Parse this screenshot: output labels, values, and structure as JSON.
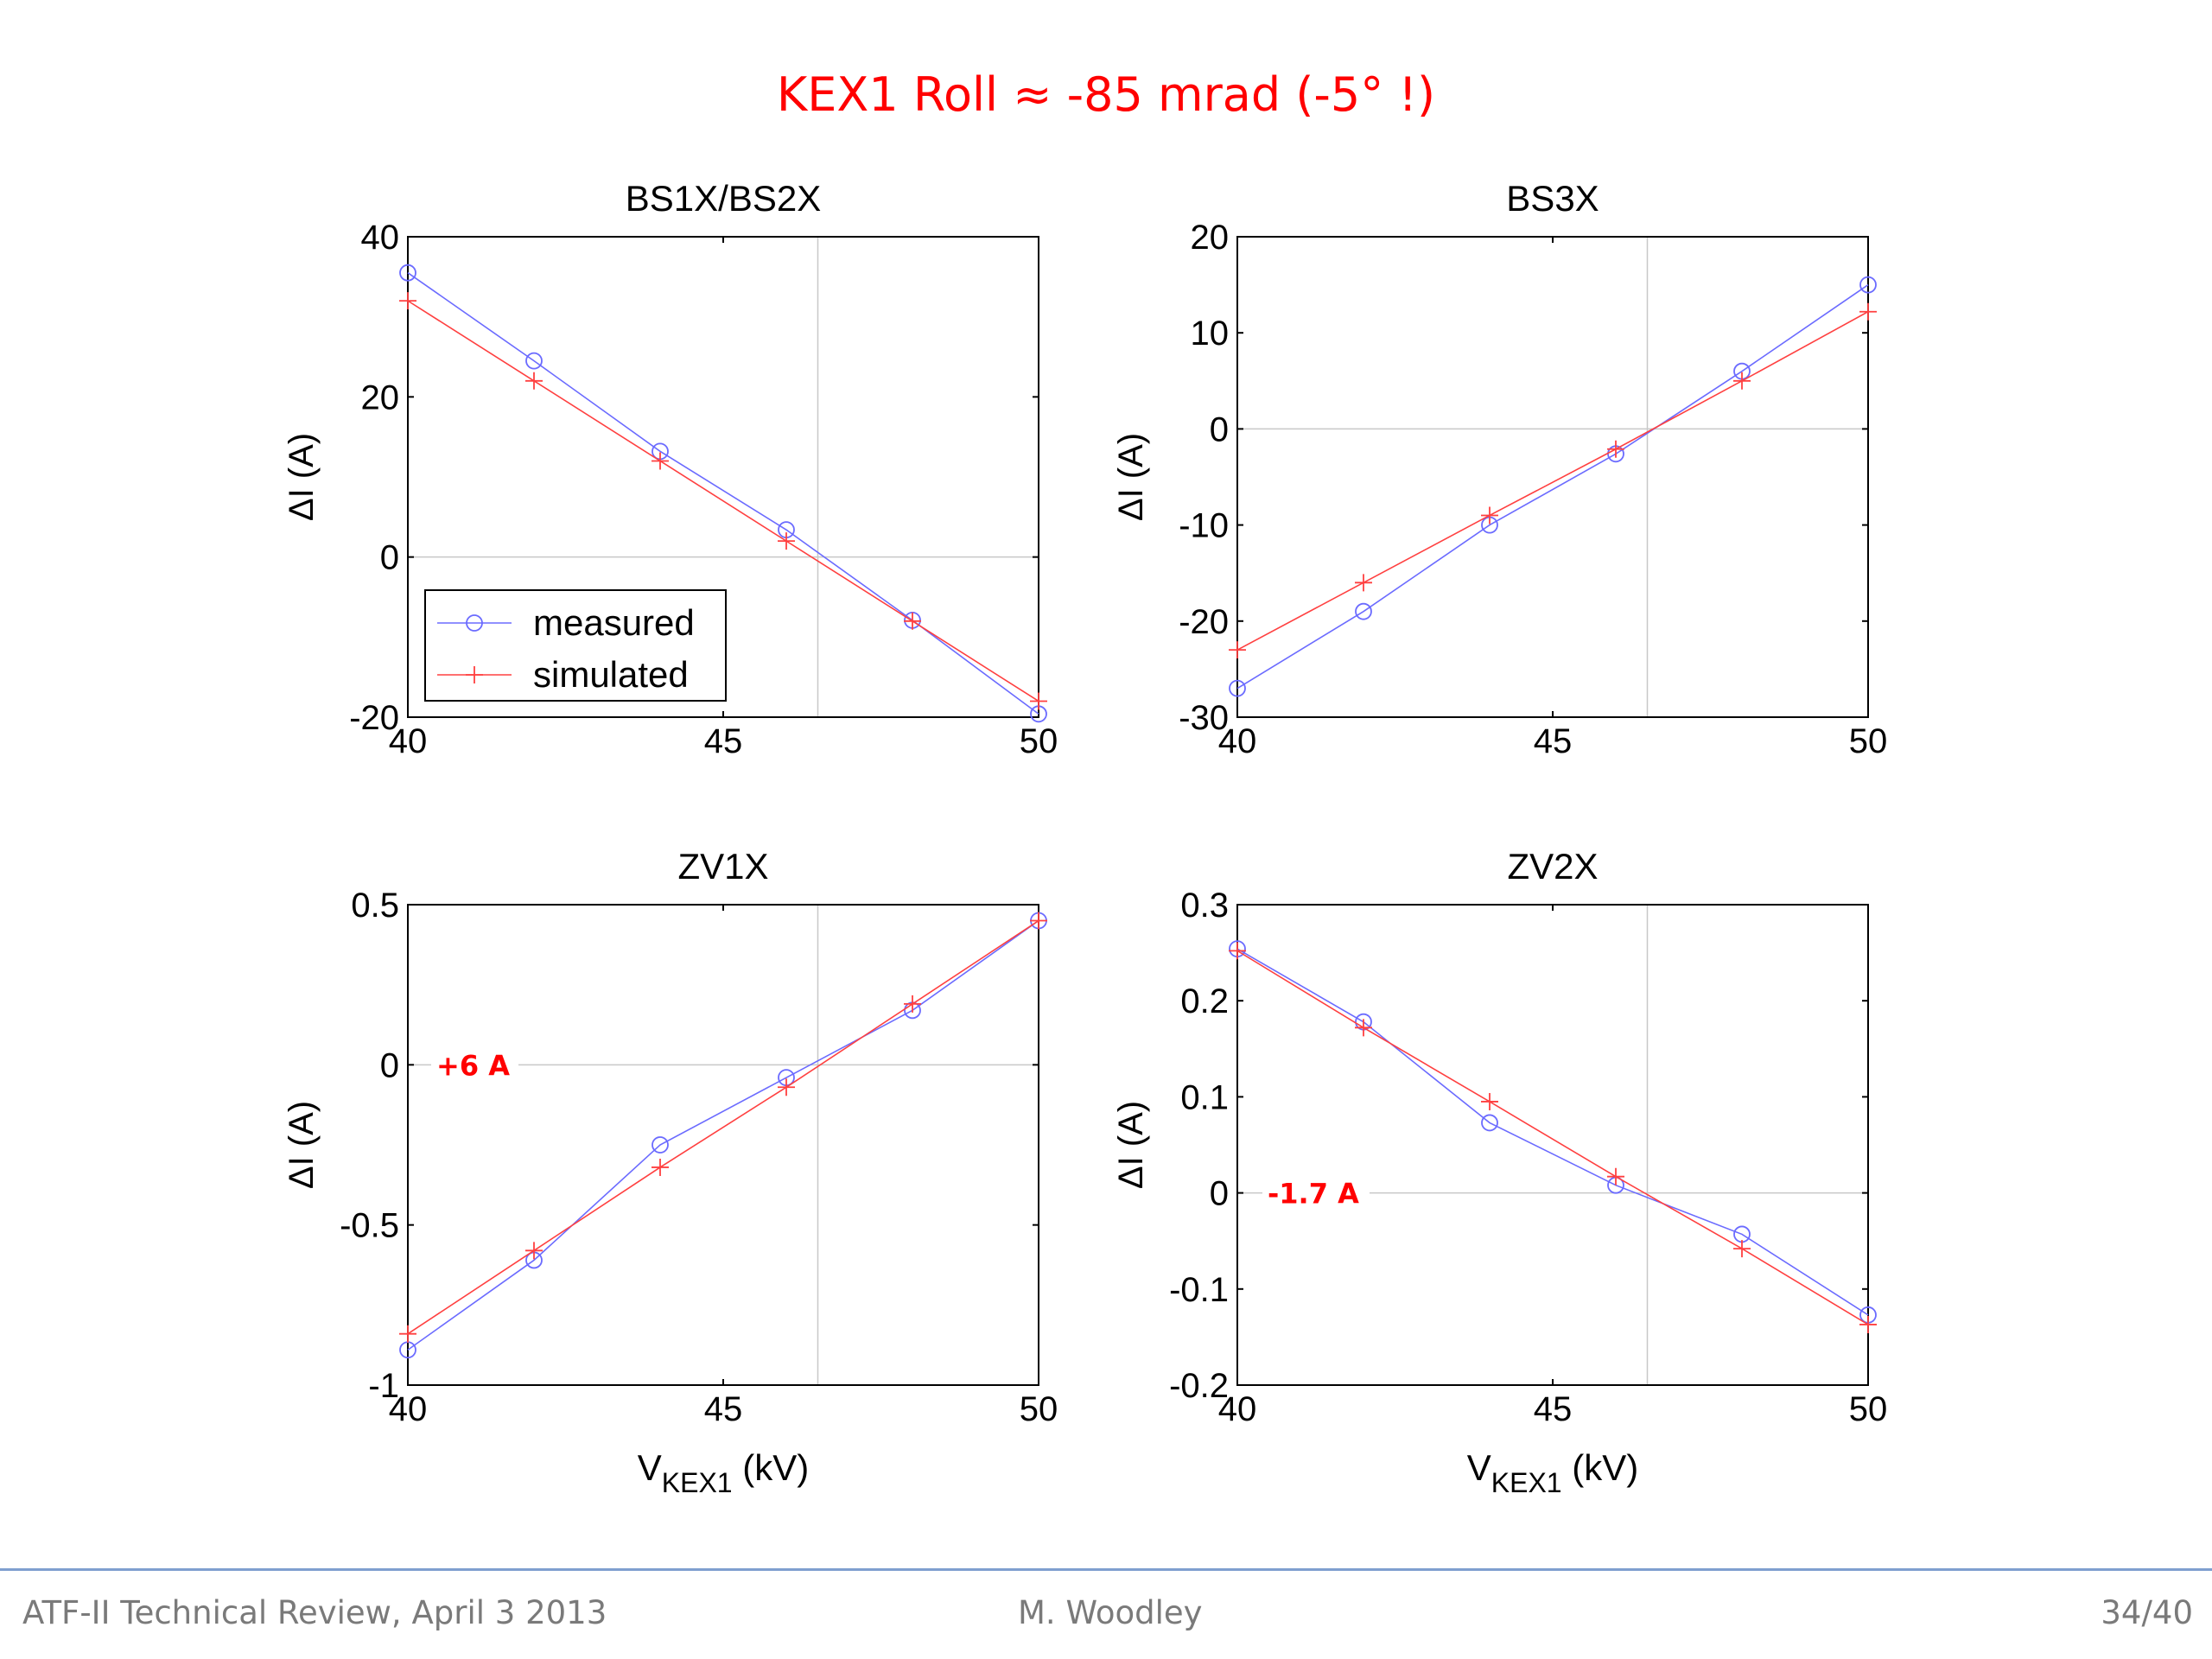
{
  "slide": {
    "title": "KEX1 Roll ≈ -85 mrad (-5° !)",
    "footer_left": "ATF-II Technical Review, April 3 2013",
    "footer_center": "M. Woodley",
    "footer_right": "34/40"
  },
  "colors": {
    "title": "#ff0000",
    "measured": "#6b6bff",
    "simulated": "#ff4040",
    "annotation": "#ff0000",
    "footer_rule": "#7f9fcf"
  },
  "legend": {
    "items": [
      "measured",
      "simulated"
    ],
    "placement": "bottom-left of BS1X/BS2X"
  },
  "chart_data": [
    {
      "type": "line",
      "title": "BS1X/BS2X",
      "xlabel": "",
      "ylabel": "ΔI (A)",
      "xlim": [
        40,
        50
      ],
      "ylim": [
        -20,
        40
      ],
      "xticks": [
        40,
        45,
        50
      ],
      "yticks": [
        -20,
        0,
        20,
        40
      ],
      "ref_x": 46.5,
      "ref_y": 0,
      "series": [
        {
          "name": "measured",
          "marker": "circle",
          "x": [
            40,
            42,
            44,
            46,
            48,
            50
          ],
          "y": [
            35.5,
            24.5,
            13.2,
            3.4,
            -7.9,
            -19.6
          ]
        },
        {
          "name": "simulated",
          "marker": "plus",
          "x": [
            40,
            42,
            44,
            46,
            48,
            50
          ],
          "y": [
            32,
            22,
            12,
            2,
            -8,
            -18
          ]
        }
      ]
    },
    {
      "type": "line",
      "title": "BS3X",
      "xlabel": "",
      "ylabel": "ΔI (A)",
      "xlim": [
        40,
        50
      ],
      "ylim": [
        -30,
        20
      ],
      "xticks": [
        40,
        45,
        50
      ],
      "yticks": [
        -30,
        -20,
        -10,
        0,
        10,
        20
      ],
      "ref_x": 46.5,
      "ref_y": 0,
      "series": [
        {
          "name": "measured",
          "marker": "circle",
          "x": [
            40,
            42,
            44,
            46,
            48,
            50
          ],
          "y": [
            -27,
            -19,
            -10,
            -2.6,
            6,
            15
          ]
        },
        {
          "name": "simulated",
          "marker": "plus",
          "x": [
            40,
            42,
            44,
            46,
            48,
            50
          ],
          "y": [
            -23,
            -16,
            -9,
            -2.1,
            5,
            12.2
          ]
        }
      ]
    },
    {
      "type": "line",
      "title": "ZV1X",
      "xlabel": "V",
      "xlabel_sub": "KEX1",
      "xlabel_unit": " (kV)",
      "ylabel": "ΔI (A)",
      "xlim": [
        40,
        50
      ],
      "ylim": [
        -1,
        0.5
      ],
      "xticks": [
        40,
        45,
        50
      ],
      "yticks": [
        -1,
        -0.5,
        0,
        0.5
      ],
      "ref_x": 46.5,
      "ref_y": 0,
      "annotation": "+6 A",
      "series": [
        {
          "name": "measured",
          "marker": "circle",
          "x": [
            40,
            42,
            44,
            46,
            48,
            50
          ],
          "y": [
            -0.89,
            -0.61,
            -0.25,
            -0.04,
            0.17,
            0.45
          ]
        },
        {
          "name": "simulated",
          "marker": "plus",
          "x": [
            40,
            42,
            44,
            46,
            48,
            50
          ],
          "y": [
            -0.84,
            -0.58,
            -0.32,
            -0.07,
            0.19,
            0.45
          ]
        }
      ]
    },
    {
      "type": "line",
      "title": "ZV2X",
      "xlabel": "V",
      "xlabel_sub": "KEX1",
      "xlabel_unit": " (kV)",
      "ylabel": "ΔI (A)",
      "xlim": [
        40,
        50
      ],
      "ylim": [
        -0.2,
        0.3
      ],
      "xticks": [
        40,
        45,
        50
      ],
      "yticks": [
        -0.2,
        -0.1,
        0,
        0.1,
        0.2,
        0.3
      ],
      "ref_x": 46.5,
      "ref_y": 0,
      "annotation": "-1.7 A",
      "series": [
        {
          "name": "measured",
          "marker": "circle",
          "x": [
            40,
            42,
            44,
            46,
            48,
            50
          ],
          "y": [
            0.254,
            0.178,
            0.073,
            0.008,
            -0.043,
            -0.127
          ]
        },
        {
          "name": "simulated",
          "marker": "plus",
          "x": [
            40,
            42,
            44,
            46,
            48,
            50
          ],
          "y": [
            0.252,
            0.172,
            0.095,
            0.017,
            -0.058,
            -0.137
          ]
        }
      ]
    }
  ]
}
